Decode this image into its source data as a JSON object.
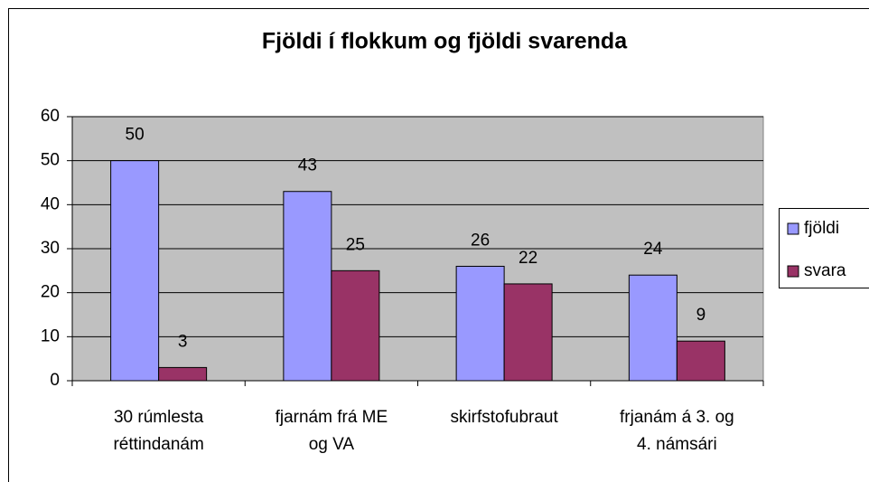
{
  "chart_data": {
    "type": "bar",
    "title": "Fjöldi í flokkum og fjöldi  svarenda",
    "categories": [
      [
        "30 rúmlesta",
        "réttindanám"
      ],
      [
        "fjarnám frá ME",
        "og VA"
      ],
      [
        "skirfstofubraut"
      ],
      [
        "frjanám á 3. og",
        "4. námsári"
      ]
    ],
    "series": [
      {
        "name": "fjöldi",
        "color": "#9999ff",
        "values": [
          50,
          43,
          26,
          24
        ]
      },
      {
        "name": "svara",
        "color": "#993366",
        "values": [
          3,
          25,
          22,
          9
        ]
      }
    ],
    "ylim": [
      0,
      60
    ],
    "yticks": [
      0,
      10,
      20,
      30,
      40,
      50,
      60
    ],
    "grid": true,
    "legend": "right"
  }
}
